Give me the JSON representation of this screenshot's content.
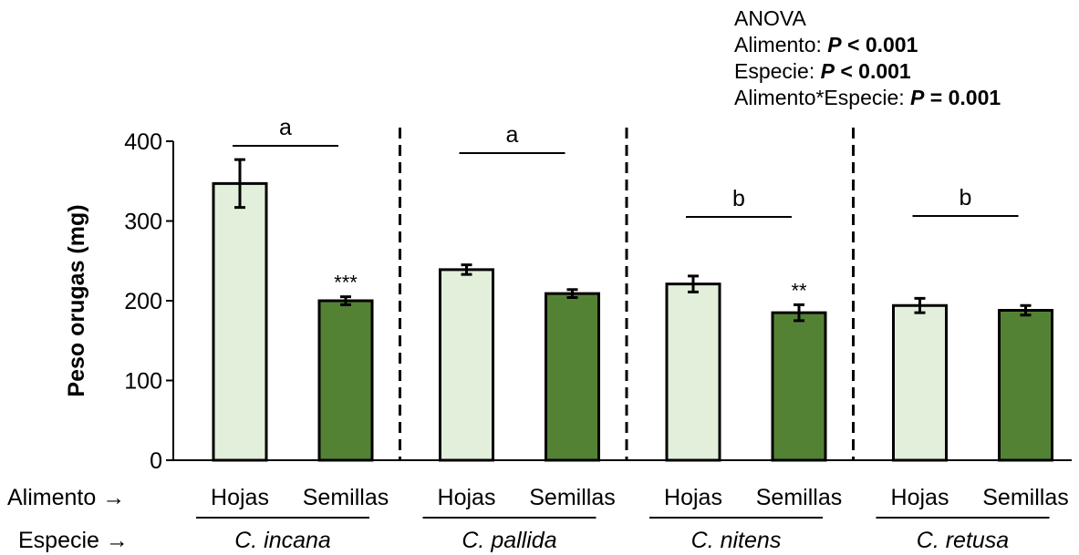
{
  "chart_data": {
    "type": "bar",
    "ylabel": "Peso orugas (mg)",
    "ylim": [
      0,
      400
    ],
    "yticks": [
      0,
      100,
      200,
      300,
      400
    ],
    "row_labels": {
      "alimento": "Alimento →",
      "especie": "Especie →"
    },
    "categories": [
      "Hojas",
      "Semillas",
      "Hojas",
      "Semillas",
      "Hojas",
      "Semillas",
      "Hojas",
      "Semillas"
    ],
    "groups": [
      {
        "species": "C. incana",
        "letter": "a",
        "bars": [
          {
            "food": "Hojas",
            "value": 347,
            "err": 30,
            "sig": "",
            "color": "#e2efda"
          },
          {
            "food": "Semillas",
            "value": 200,
            "err": 5,
            "sig": "***",
            "color": "#548235"
          }
        ]
      },
      {
        "species": "C. pallida",
        "letter": "a",
        "bars": [
          {
            "food": "Hojas",
            "value": 239,
            "err": 6,
            "sig": "",
            "color": "#e2efda"
          },
          {
            "food": "Semillas",
            "value": 209,
            "err": 5,
            "sig": "",
            "color": "#548235"
          }
        ]
      },
      {
        "species": "C. nitens",
        "letter": "b",
        "bars": [
          {
            "food": "Hojas",
            "value": 221,
            "err": 10,
            "sig": "",
            "color": "#e2efda"
          },
          {
            "food": "Semillas",
            "value": 185,
            "err": 10,
            "sig": "**",
            "color": "#548235"
          }
        ]
      },
      {
        "species": "C. retusa",
        "letter": "b",
        "bars": [
          {
            "food": "Hojas",
            "value": 194,
            "err": 9,
            "sig": "",
            "color": "#e2efda"
          },
          {
            "food": "Semillas",
            "value": 188,
            "err": 6,
            "sig": "",
            "color": "#548235"
          }
        ]
      }
    ],
    "annotation": {
      "title": "ANOVA",
      "lines": [
        {
          "label": "Alimento: ",
          "p": "P",
          "rest": " < 0.001"
        },
        {
          "label": "Especie: ",
          "p": "P",
          "rest": " < 0.001"
        },
        {
          "label": "Alimento*Especie: ",
          "p": "P",
          "rest": " = 0.001"
        }
      ]
    },
    "grid": false,
    "legend": "none"
  }
}
